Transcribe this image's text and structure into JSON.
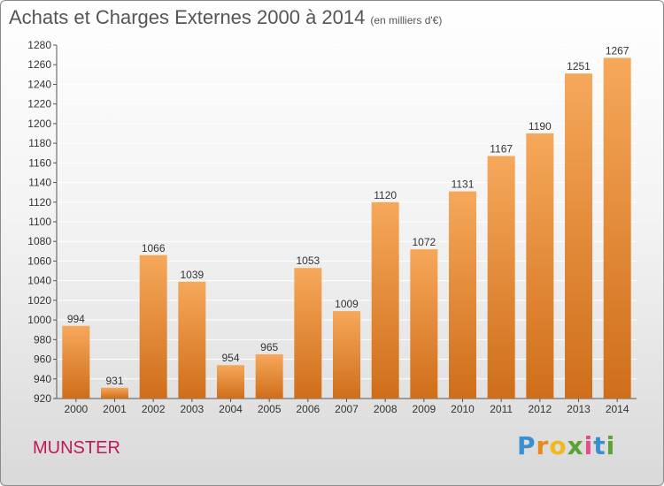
{
  "header": {
    "title": "Achats et Charges Externes 2000 à 2014",
    "unit": "(en milliers d'€)"
  },
  "footer": {
    "town": "MUNSTER",
    "logo": "Proxiti"
  },
  "colors": {
    "bar_light": "#f6a85a",
    "bar_dark": "#cf6e1a",
    "town": "#c2185b",
    "grid": "#ffffff"
  },
  "chart_data": {
    "type": "bar",
    "title": "Achats et Charges Externes 2000 à 2014",
    "subtitle": "(en milliers d'€)",
    "xlabel": "",
    "ylabel": "",
    "categories": [
      "2000",
      "2001",
      "2002",
      "2003",
      "2004",
      "2005",
      "2006",
      "2007",
      "2008",
      "2009",
      "2010",
      "2011",
      "2012",
      "2013",
      "2014"
    ],
    "values": [
      994,
      931,
      1066,
      1039,
      954,
      965,
      1053,
      1009,
      1120,
      1072,
      1131,
      1167,
      1190,
      1251,
      1267
    ],
    "ylim": [
      920,
      1280
    ],
    "yticks": [
      920,
      940,
      960,
      980,
      1000,
      1020,
      1040,
      1060,
      1080,
      1100,
      1120,
      1140,
      1160,
      1180,
      1200,
      1220,
      1240,
      1260,
      1280
    ],
    "grid": true,
    "data_labels": true
  }
}
